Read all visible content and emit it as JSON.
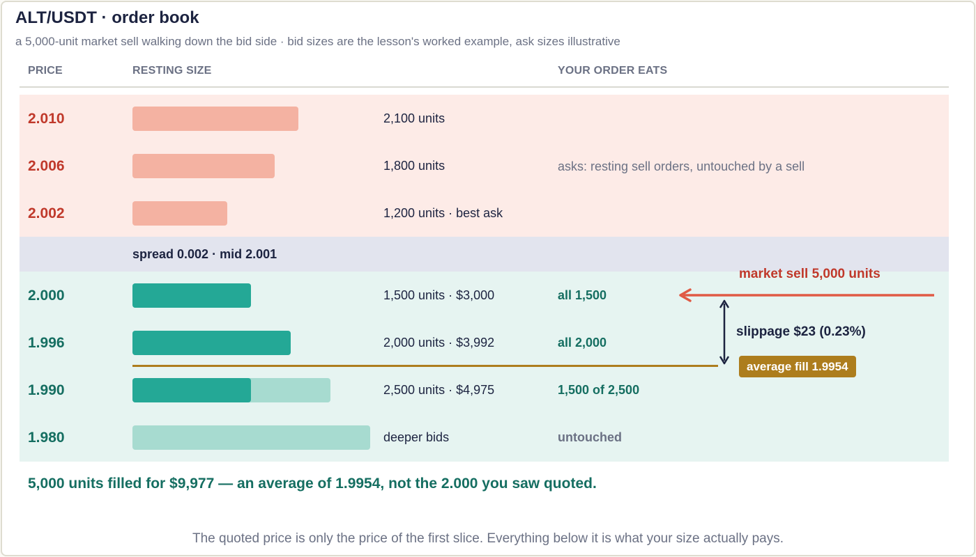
{
  "header": {
    "title": "ALT/USDT · order book",
    "subtitle": "a 5,000-unit market sell walking down the bid side · bid sizes are the lesson's worked example, ask sizes illustrative"
  },
  "columns": {
    "price": "PRICE",
    "resting_size": "RESTING SIZE",
    "your_order_eats": "YOUR ORDER EATS"
  },
  "asks": [
    {
      "price": "2.010",
      "size_text": "2,100 units",
      "size": 2100
    },
    {
      "price": "2.006",
      "size_text": "1,800 units",
      "size": 1800
    },
    {
      "price": "2.002",
      "size_text": "1,200 units  ·  best ask",
      "size": 1200
    }
  ],
  "asks_note": "asks: resting sell orders, untouched by a sell",
  "spread_text": "spread 0.002  ·  mid 2.001",
  "bids": [
    {
      "price": "2.000",
      "size_text": "1,500 units  ·  $3,000",
      "size": 1500,
      "filled": 1500,
      "eats": "all 1,500",
      "muted": false
    },
    {
      "price": "1.996",
      "size_text": "2,000 units  ·  $3,992",
      "size": 2000,
      "filled": 2000,
      "eats": "all 2,000",
      "muted": false
    },
    {
      "price": "1.990",
      "size_text": "2,500 units  ·  $4,975",
      "size": 2500,
      "filled": 1500,
      "eats": "1,500 of 2,500",
      "muted": false
    },
    {
      "price": "1.980",
      "size_text": "deeper bids",
      "size": 3000,
      "filled": 0,
      "eats": "untouched",
      "muted": true
    }
  ],
  "annotations": {
    "market_sell": "market sell 5,000 units",
    "slippage": "slippage $23 (0.23%)",
    "average_fill": "average fill 1.9954"
  },
  "summary": "5,000 units filled for $9,977 — an average of 1.9954, not the 2.000 you saw quoted.",
  "footer": "The quoted price is only the price of the first slice. Everything below it is what your size actually pays.",
  "colors": {
    "ask_text": "#c0392b",
    "ask_bar": "#f4b2a2",
    "ask_band": "#fdebe7",
    "bid_text": "#156e61",
    "bid_fill": "#24a896",
    "bid_rest": "#a7dbd0",
    "bid_band": "#e6f4f1",
    "spread_band": "#e2e4ee",
    "average_fill": "#ad7d1d",
    "market_arrow": "#e05a45",
    "navy": "#1c2340"
  }
}
